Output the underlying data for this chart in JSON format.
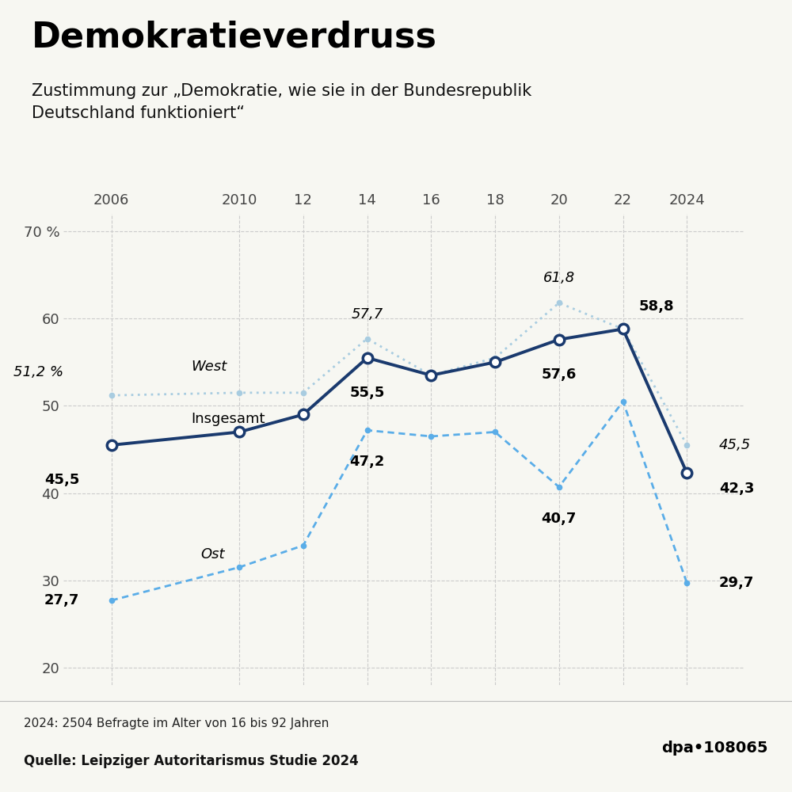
{
  "title": "Demokratieverdruss",
  "subtitle": "Zustimmung zur „Demokratie, wie sie in der Bundesrepublik\nDeutschland funktioniert“",
  "footnote": "2024: 2504 Befragte im Alter von 16 bis 92 Jahren",
  "source": "Quelle: Leipziger Autoritarismus Studie 2024",
  "dpa_id": "dpa•108065",
  "background_color": "#f7f7f2",
  "footer_color": "#e8e8e2",
  "xtick_labels": [
    "2006",
    "2010",
    "12",
    "14",
    "16",
    "18",
    "20",
    "22",
    "2024"
  ],
  "xtick_positions": [
    2006,
    2010,
    2012,
    2014,
    2016,
    2018,
    2020,
    2022,
    2024
  ],
  "insgesamt_years": [
    2006,
    2010,
    2012,
    2014,
    2016,
    2018,
    2020,
    2022,
    2024
  ],
  "insgesamt_values": [
    45.5,
    47.0,
    49.0,
    55.5,
    53.5,
    55.0,
    57.6,
    58.8,
    42.3
  ],
  "insgesamt_color": "#1a3a6e",
  "insgesamt_linewidth": 2.8,
  "west_years": [
    2006,
    2010,
    2012,
    2014,
    2016,
    2018,
    2020,
    2022,
    2024
  ],
  "west_values": [
    51.2,
    51.5,
    51.5,
    57.7,
    53.5,
    55.5,
    61.8,
    58.8,
    45.5
  ],
  "west_color": "#a8cce0",
  "west_linewidth": 2.0,
  "ost_years": [
    2006,
    2010,
    2012,
    2014,
    2016,
    2018,
    2020,
    2022,
    2024
  ],
  "ost_values": [
    27.7,
    31.5,
    34.0,
    47.2,
    46.5,
    47.0,
    40.7,
    50.5,
    29.7
  ],
  "ost_color": "#5aade8",
  "ost_linewidth": 2.0,
  "ylim": [
    18,
    72
  ],
  "yticks": [
    20,
    30,
    40,
    50,
    60,
    70
  ],
  "ylabel_special": "70 %"
}
